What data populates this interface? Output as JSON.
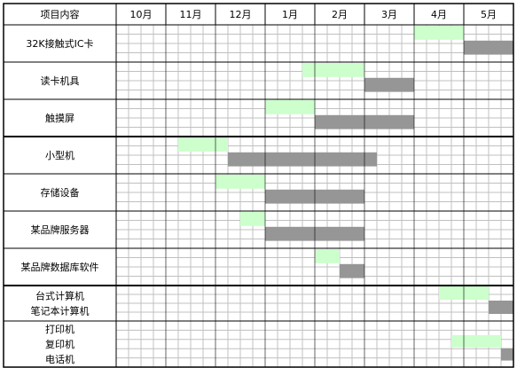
{
  "chart_data": {
    "type": "gantt",
    "header_label": "项目内容",
    "months": [
      "10月",
      "11月",
      "12月",
      "1月",
      "2月",
      "3月",
      "4月",
      "5月"
    ],
    "subdivisions_per_month": 4,
    "colors": {
      "plan": "#ccffcc",
      "actual": "#969696",
      "grid": "#c0c0c0",
      "border": "#000000"
    },
    "rows": [
      {
        "label": "32K接触式IC卡",
        "sub_rows": 2,
        "bars": [
          {
            "kind": "plan",
            "start": 6.0,
            "end": 7.0,
            "sub": 0
          },
          {
            "kind": "actual",
            "start": 7.0,
            "end": 8.0,
            "sub": 1
          }
        ]
      },
      {
        "label": "读卡机具",
        "sub_rows": 2,
        "bars": [
          {
            "kind": "plan",
            "start": 3.75,
            "end": 5.0,
            "sub": 0
          },
          {
            "kind": "actual",
            "start": 5.0,
            "end": 6.0,
            "sub": 1
          }
        ]
      },
      {
        "label": "触摸屏",
        "sub_rows": 2,
        "bars": [
          {
            "kind": "plan",
            "start": 3.0,
            "end": 4.0,
            "sub": 0
          },
          {
            "kind": "actual",
            "start": 4.0,
            "end": 6.0,
            "sub": 1
          }
        ]
      },
      {
        "label": "小型机",
        "sub_rows": 2,
        "thick_top": true,
        "bars": [
          {
            "kind": "plan",
            "start": 1.25,
            "end": 2.25,
            "sub": 0
          },
          {
            "kind": "actual",
            "start": 2.25,
            "end": 5.25,
            "sub": 1
          }
        ]
      },
      {
        "label": "存储设备",
        "sub_rows": 2,
        "bars": [
          {
            "kind": "plan",
            "start": 2.0,
            "end": 3.0,
            "sub": 0
          },
          {
            "kind": "actual",
            "start": 3.0,
            "end": 5.0,
            "sub": 1
          }
        ]
      },
      {
        "label": "某品牌服务器",
        "sub_rows": 2,
        "bars": [
          {
            "kind": "plan",
            "start": 2.5,
            "end": 3.0,
            "sub": 0
          },
          {
            "kind": "actual",
            "start": 3.0,
            "end": 5.0,
            "sub": 1
          }
        ]
      },
      {
        "label": "某品牌数据库软件",
        "sub_rows": 2,
        "bars": [
          {
            "kind": "plan",
            "start": 4.0,
            "end": 4.5,
            "sub": 0
          },
          {
            "kind": "actual",
            "start": 4.5,
            "end": 5.0,
            "sub": 1
          }
        ]
      },
      {
        "label": "台式计算机\n笔记本计算机",
        "sub_rows": 2,
        "thick_top": true,
        "bars": [
          {
            "kind": "plan",
            "start": 6.5,
            "end": 7.5,
            "sub": 0
          },
          {
            "kind": "actual",
            "start": 7.5,
            "end": 8.0,
            "sub": 1
          }
        ]
      },
      {
        "label": "打印机\n复印机\n电话机",
        "sub_rows": 3,
        "bars": [
          {
            "kind": "plan",
            "start": 6.75,
            "end": 7.75,
            "sub": 1
          },
          {
            "kind": "actual",
            "start": 7.75,
            "end": 8.0,
            "sub": 2
          }
        ]
      }
    ]
  }
}
